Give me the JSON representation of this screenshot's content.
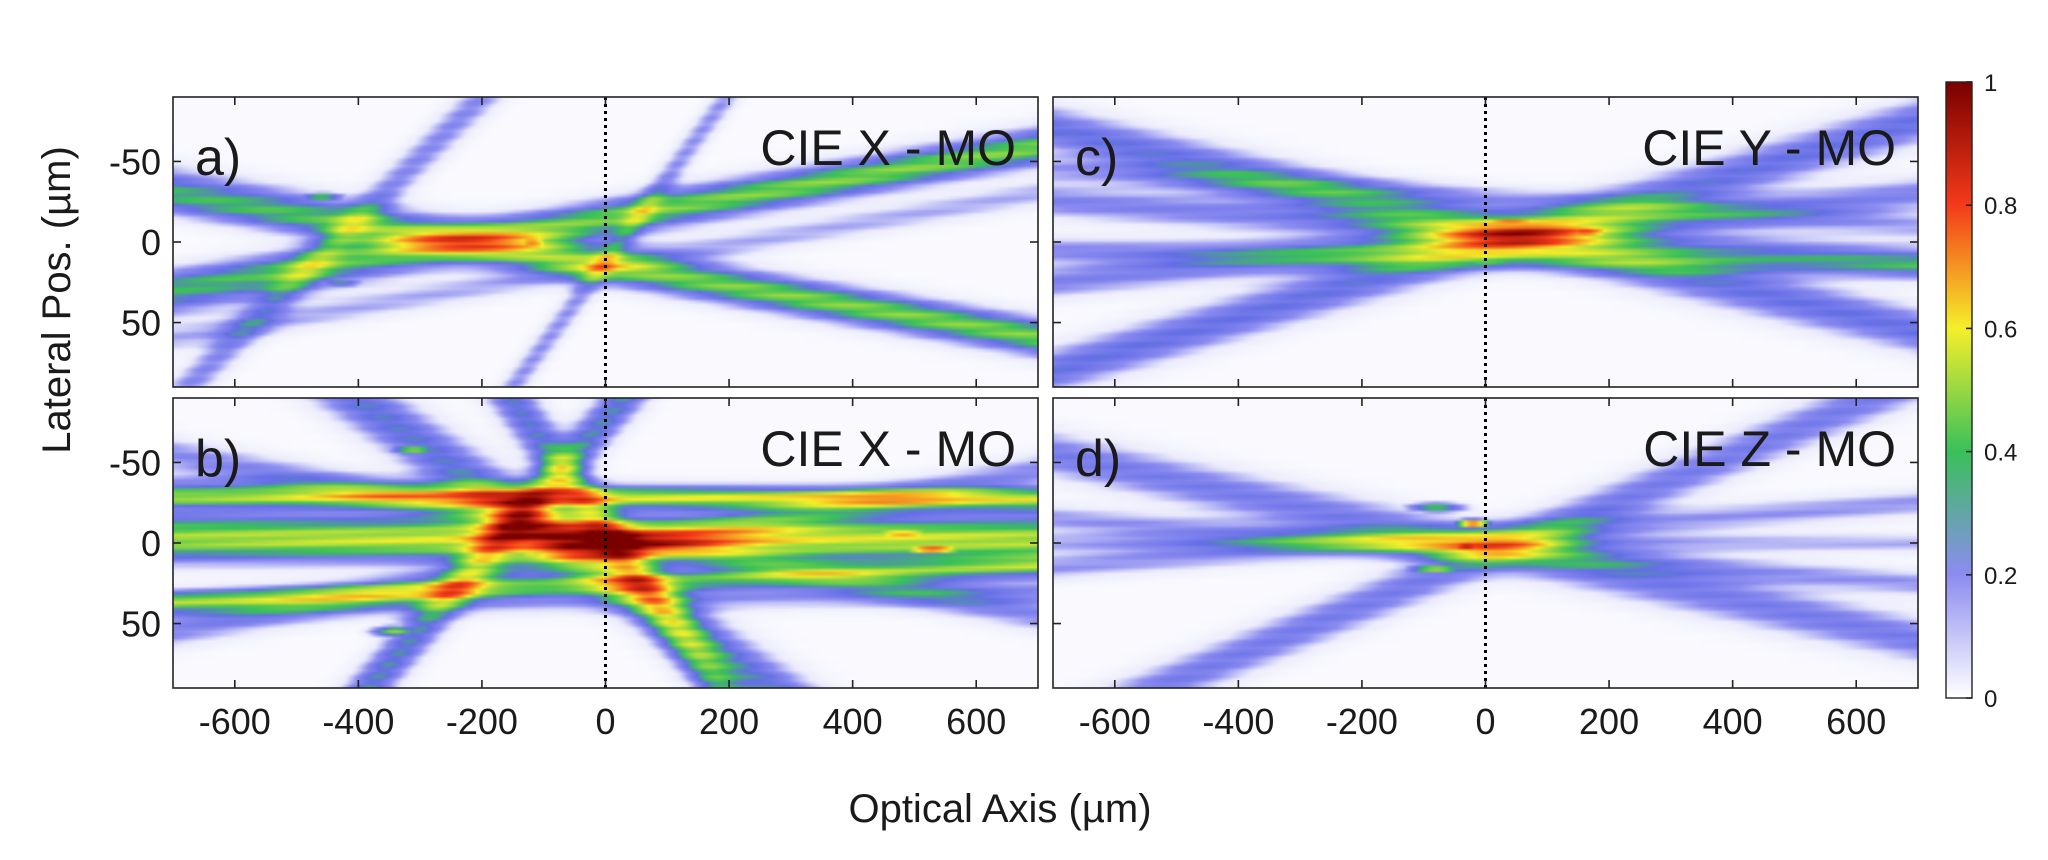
{
  "chart_data": {
    "type": "heatmap",
    "xlabel": "Optical Axis (µm)",
    "ylabel": "Lateral Pos. (µm)",
    "xlim": [
      -700,
      700
    ],
    "ylim": [
      -90,
      90
    ],
    "y_direction": "reversed",
    "xticks": [
      -600,
      -400,
      -200,
      0,
      200,
      400,
      600
    ],
    "xtick_labels": [
      "-600",
      "-400",
      "-200",
      "0",
      "200",
      "400",
      "600"
    ],
    "yticks": [
      -50,
      0,
      50
    ],
    "ytick_labels": [
      "-50",
      "0",
      "50"
    ],
    "reference_line_x": 0,
    "colorbar": {
      "range": [
        0,
        1
      ],
      "ticks": [
        0,
        0.2,
        0.4,
        0.6,
        0.8,
        1
      ],
      "tick_labels": [
        "0",
        "0.2",
        "0.4",
        "0.6",
        "0.8",
        "1"
      ],
      "colors": [
        "#ffffff",
        "#8c8cf0",
        "#39c05a",
        "#f5ef2a",
        "#f43a1a",
        "#7a0000"
      ]
    },
    "panels": [
      {
        "id": "a",
        "tag": "a)",
        "title": "CIE X - MO",
        "beams": [
          {
            "x1": -700,
            "y1": -35,
            "x2": 700,
            "y2": 60,
            "w": 12,
            "v": 0.26
          },
          {
            "x1": -700,
            "y1": 35,
            "x2": 700,
            "y2": -60,
            "w": 12,
            "v": 0.26
          },
          {
            "x1": -700,
            "y1": -25,
            "x2": 400,
            "y2": 40,
            "w": 10,
            "v": 0.22
          },
          {
            "x1": -700,
            "y1": 25,
            "x2": 400,
            "y2": -40,
            "w": 10,
            "v": 0.22
          },
          {
            "x1": -650,
            "y1": 80,
            "x2": -200,
            "y2": -90,
            "w": 14,
            "v": 0.2
          },
          {
            "x1": -150,
            "y1": 90,
            "x2": 100,
            "y2": -40,
            "w": 12,
            "v": 0.18
          },
          {
            "x1": -700,
            "y1": 60,
            "x2": 700,
            "y2": -30,
            "w": 8,
            "v": 0.15
          }
        ],
        "hotspots": [
          {
            "x": -120,
            "y": 0,
            "v": 0.85,
            "sx": 40,
            "sy": 4
          },
          {
            "x": -460,
            "y": -28,
            "v": 0.45,
            "sx": 40,
            "sy": 3
          },
          {
            "x": -430,
            "y": 25,
            "v": 0.4,
            "sx": 40,
            "sy": 3
          },
          {
            "x": 60,
            "y": -23,
            "v": 0.4,
            "sx": 40,
            "sy": 3
          }
        ]
      },
      {
        "id": "b",
        "tag": "b)",
        "title": "CIE X - MO",
        "beams": [
          {
            "x1": -700,
            "y1": -8,
            "x2": 700,
            "y2": 2,
            "w": 14,
            "v": 0.32
          },
          {
            "x1": -700,
            "y1": 2,
            "x2": 700,
            "y2": -6,
            "w": 12,
            "v": 0.28
          },
          {
            "x1": -480,
            "y1": -110,
            "x2": 100,
            "y2": 45,
            "w": 20,
            "v": 0.3
          },
          {
            "x1": -200,
            "y1": 10,
            "x2": -430,
            "y2": 110,
            "w": 18,
            "v": 0.32
          },
          {
            "x1": -60,
            "y1": -40,
            "x2": 220,
            "y2": 110,
            "w": 22,
            "v": 0.3
          },
          {
            "x1": -700,
            "y1": -55,
            "x2": 700,
            "y2": 45,
            "w": 10,
            "v": 0.2
          },
          {
            "x1": -700,
            "y1": 55,
            "x2": 700,
            "y2": -45,
            "w": 10,
            "v": 0.2
          },
          {
            "x1": -700,
            "y1": -35,
            "x2": 700,
            "y2": -25,
            "w": 8,
            "v": 0.18
          },
          {
            "x1": -700,
            "y1": 40,
            "x2": 700,
            "y2": 30,
            "w": 8,
            "v": 0.18
          },
          {
            "x1": 0,
            "y1": -28,
            "x2": 150,
            "y2": -28,
            "w": 6,
            "v": 0.4
          },
          {
            "x1": 0,
            "y1": 25,
            "x2": 200,
            "y2": 22,
            "w": 6,
            "v": 0.38
          }
        ],
        "hotspots": [
          {
            "x": -60,
            "y": 2,
            "v": 0.98,
            "sx": 50,
            "sy": 7
          },
          {
            "x": -120,
            "y": 6,
            "v": 0.7,
            "sx": 40,
            "sy": 6
          },
          {
            "x": -10,
            "y": -4,
            "v": 0.75,
            "sx": 30,
            "sy": 6
          },
          {
            "x": 480,
            "y": -6,
            "v": 0.8,
            "sx": 70,
            "sy": 3
          },
          {
            "x": 530,
            "y": 4,
            "v": 0.85,
            "sx": 60,
            "sy": 3
          },
          {
            "x": -310,
            "y": -58,
            "v": 0.5,
            "sx": 40,
            "sy": 4
          },
          {
            "x": -340,
            "y": 55,
            "v": 0.5,
            "sx": 40,
            "sy": 4
          },
          {
            "x": -560,
            "y": 2,
            "v": 0.45,
            "sx": 80,
            "sy": 3
          },
          {
            "x": 60,
            "y": 25,
            "v": 0.45,
            "sx": 50,
            "sy": 3
          },
          {
            "x": 60,
            "y": -28,
            "v": 0.45,
            "sx": 50,
            "sy": 3
          }
        ]
      },
      {
        "id": "c",
        "tag": "c)",
        "title": "CIE Y - MO",
        "beams": [
          {
            "x1": -700,
            "y1": -70,
            "x2": 700,
            "y2": 55,
            "w": 14,
            "v": 0.28
          },
          {
            "x1": -700,
            "y1": 80,
            "x2": 700,
            "y2": -75,
            "w": 14,
            "v": 0.28
          },
          {
            "x1": -700,
            "y1": -25,
            "x2": 700,
            "y2": 12,
            "w": 10,
            "v": 0.22
          },
          {
            "x1": -700,
            "y1": 25,
            "x2": 700,
            "y2": -30,
            "w": 10,
            "v": 0.22
          },
          {
            "x1": -700,
            "y1": 5,
            "x2": 700,
            "y2": 15,
            "w": 8,
            "v": 0.2
          },
          {
            "x1": -700,
            "y1": -45,
            "x2": 700,
            "y2": -10,
            "w": 8,
            "v": 0.16
          }
        ],
        "hotspots": [
          {
            "x": 40,
            "y": -12,
            "v": 0.82,
            "sx": 80,
            "sy": 3
          },
          {
            "x": 160,
            "y": -6,
            "v": 0.9,
            "sx": 60,
            "sy": 3
          },
          {
            "x": 0,
            "y": 12,
            "v": 0.55,
            "sx": 80,
            "sy": 3
          },
          {
            "x": 250,
            "y": -22,
            "v": 0.45,
            "sx": 80,
            "sy": 3
          },
          {
            "x": -120,
            "y": -18,
            "v": 0.45,
            "sx": 50,
            "sy": 3
          }
        ]
      },
      {
        "id": "d",
        "tag": "d)",
        "title": "CIE Z - MO",
        "beams": [
          {
            "x1": -700,
            "y1": -55,
            "x2": 700,
            "y2": 60,
            "w": 14,
            "v": 0.24
          },
          {
            "x1": -500,
            "y1": 85,
            "x2": 500,
            "y2": -70,
            "w": 14,
            "v": 0.24
          },
          {
            "x1": -700,
            "y1": -15,
            "x2": 700,
            "y2": 25,
            "w": 8,
            "v": 0.18
          },
          {
            "x1": -700,
            "y1": 15,
            "x2": 700,
            "y2": -25,
            "w": 8,
            "v": 0.18
          },
          {
            "x1": -700,
            "y1": 0,
            "x2": 700,
            "y2": 0,
            "w": 6,
            "v": 0.15
          }
        ],
        "hotspots": [
          {
            "x": -30,
            "y": 2,
            "v": 0.95,
            "sx": 40,
            "sy": 4
          },
          {
            "x": -20,
            "y": -12,
            "v": 0.8,
            "sx": 30,
            "sy": 3
          },
          {
            "x": -80,
            "y": 16,
            "v": 0.55,
            "sx": 50,
            "sy": 3
          },
          {
            "x": -80,
            "y": -22,
            "v": 0.5,
            "sx": 50,
            "sy": 3
          },
          {
            "x": -200,
            "y": -8,
            "v": 0.4,
            "sx": 60,
            "sy": 3
          }
        ]
      }
    ]
  }
}
